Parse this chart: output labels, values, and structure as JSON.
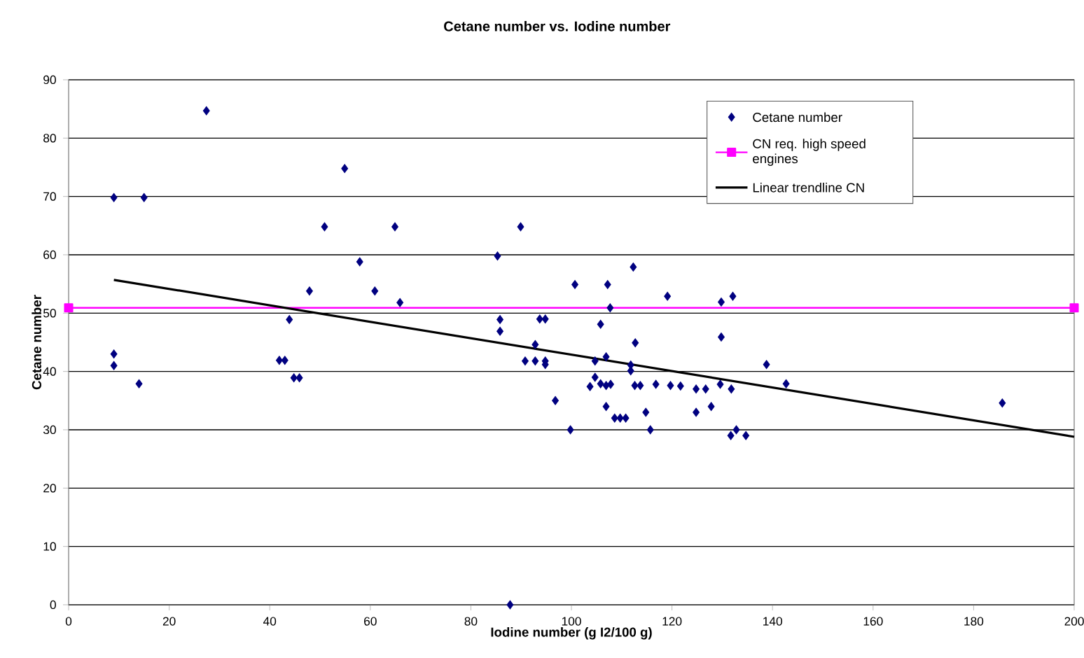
{
  "chart_data": {
    "type": "scatter",
    "title": "Cetane number vs. Iodine number",
    "xlabel": "Iodine number (g I2/100 g)",
    "ylabel": "Cetane number",
    "xlim": [
      0,
      200
    ],
    "ylim": [
      0,
      90
    ],
    "xticks": [
      0,
      20,
      40,
      60,
      80,
      100,
      120,
      140,
      160,
      180,
      200
    ],
    "yticks": [
      0,
      10,
      20,
      30,
      40,
      50,
      60,
      70,
      80,
      90
    ],
    "grid": "y",
    "legend": "top right",
    "series": [
      {
        "name": "Cetane number",
        "color": "#000080",
        "marker": "diamond",
        "x": [
          9,
          9,
          9,
          15,
          14,
          27.4,
          41.9,
          43,
          43.9,
          44.8,
          45.9,
          47.9,
          50.9,
          54.9,
          57.9,
          60.9,
          64.9,
          65.9,
          85.3,
          85.8,
          85.8,
          87.8,
          89.9,
          90.8,
          92.8,
          92.8,
          93.7,
          94.8,
          94.8,
          94.8,
          96.8,
          99.8,
          100.7,
          103.7,
          104.7,
          104.7,
          105.8,
          105.8,
          106.9,
          106.9,
          107.2,
          107.8,
          107.7,
          106.9,
          108.6,
          109.7,
          110.8,
          112.3,
          111.8,
          111.8,
          112.7,
          112.6,
          113.7,
          114.8,
          115.7,
          116.8,
          119.1,
          119.7,
          121.7,
          124.8,
          124.8,
          126.7,
          127.8,
          129.8,
          129.8,
          129.6,
          132.1,
          131.7,
          132.8,
          131.8,
          134.7,
          138.8,
          142.7,
          185.7
        ],
        "values": [
          69.8,
          43,
          41,
          69.8,
          37.9,
          84.7,
          41.9,
          41.9,
          48.9,
          38.9,
          38.9,
          53.8,
          64.8,
          74.8,
          58.8,
          53.8,
          64.8,
          51.8,
          59.8,
          48.9,
          46.9,
          0,
          64.8,
          41.8,
          44.6,
          41.8,
          49,
          49,
          41.8,
          41.2,
          35,
          30,
          54.9,
          37.4,
          41.8,
          39,
          48.1,
          37.9,
          42.5,
          37.6,
          54.9,
          37.8,
          50.9,
          34,
          32,
          32,
          32,
          57.9,
          41.1,
          40.1,
          44.9,
          37.6,
          37.6,
          33,
          30,
          37.8,
          52.9,
          37.6,
          37.5,
          37,
          33,
          37,
          34,
          51.9,
          45.9,
          37.8,
          52.9,
          29,
          30,
          37,
          29,
          41.2,
          37.9,
          34.6
        ]
      },
      {
        "name": "CN req. high speed engines",
        "type": "line",
        "color": "#ff00ff",
        "marker": "square",
        "x": [
          0,
          200
        ],
        "values": [
          50.9,
          50.9
        ]
      },
      {
        "name": "Linear trendline CN",
        "type": "line",
        "color": "#000000",
        "marker": "none",
        "x": [
          9,
          200
        ],
        "values": [
          55.7,
          28.8
        ]
      }
    ]
  }
}
